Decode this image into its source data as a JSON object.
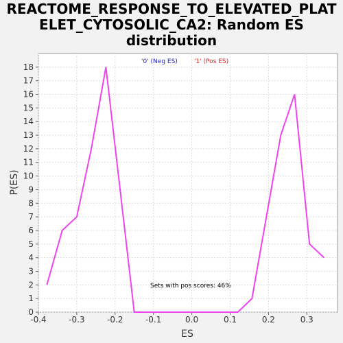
{
  "title_lines": [
    "REACTOME_RESPONSE_TO_ELEVATED_PLAT",
    "ELET_CYTOSOLIC_CA2: Random ES",
    "distribution"
  ],
  "colors": {
    "line": "#ee44ee",
    "neg": "#2222bb",
    "pos": "#dd2222",
    "grid": "#dddddd"
  },
  "chart_data": {
    "type": "line",
    "title": "REACTOME_RESPONSE_TO_ELEVATED_PLATELET_CYTOSOLIC_CA2: Random ES distribution",
    "xlabel": "ES",
    "ylabel": "P(ES)",
    "xlim": [
      -0.4,
      0.38
    ],
    "ylim": [
      0,
      19
    ],
    "xticks": [
      -0.4,
      -0.3,
      -0.2,
      -0.1,
      0.0,
      0.1,
      0.2,
      0.3
    ],
    "xtick_labels": [
      "-0.4",
      "-0.3",
      "-0.2",
      "-0.1",
      "0.0",
      "0.1",
      "0.2",
      "0.3"
    ],
    "yticks": [
      0,
      1,
      2,
      3,
      4,
      5,
      6,
      7,
      8,
      9,
      10,
      11,
      12,
      13,
      14,
      15,
      16,
      17,
      18
    ],
    "grid": true,
    "legend": [
      {
        "label": "'0' (Neg ES)",
        "color": "#2222bb"
      },
      {
        "label": "'1' (Pos ES)",
        "color": "#dd2222"
      }
    ],
    "annotation": "Sets with pos scores: 46%",
    "series": [
      {
        "x": [
          -0.378,
          -0.338,
          -0.3,
          -0.262,
          -0.224,
          -0.15,
          0.12,
          0.157,
          0.232,
          0.268,
          0.307,
          0.345
        ],
        "y": [
          2,
          6,
          7,
          12,
          18,
          0,
          0,
          1,
          13,
          16,
          5,
          4
        ]
      }
    ]
  }
}
